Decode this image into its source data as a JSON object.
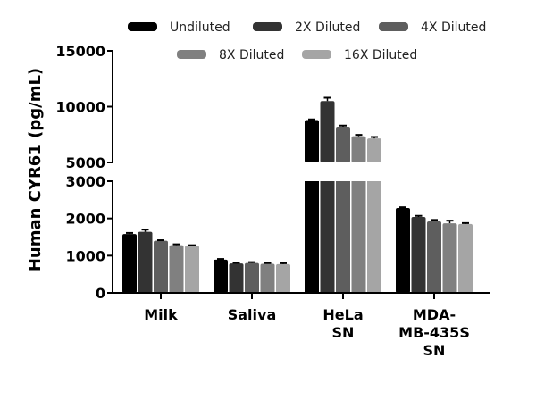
{
  "chart_data": {
    "type": "bar",
    "title": "",
    "xlabel": "",
    "ylabel": "Human CYR61 (pg/mL)",
    "categories": [
      "Milk",
      "Saliva",
      "HeLa SN",
      "MDA-MB-435S SN"
    ],
    "category_label_lines": [
      [
        "Milk"
      ],
      [
        "Saliva"
      ],
      [
        "HeLa",
        "SN"
      ],
      [
        "MDA-",
        "MB-435S",
        "SN"
      ]
    ],
    "series": [
      {
        "name": "Undiluted",
        "color": "#000000",
        "values": [
          1580,
          890,
          8800,
          2280
        ],
        "errors": [
          30,
          20,
          60,
          20
        ]
      },
      {
        "name": "2X Diluted",
        "color": "#333333",
        "values": [
          1640,
          790,
          10500,
          2040
        ],
        "errors": [
          60,
          15,
          300,
          30
        ]
      },
      {
        "name": "4X Diluted",
        "color": "#5e5e5e",
        "values": [
          1400,
          800,
          8200,
          1920
        ],
        "errors": [
          15,
          25,
          100,
          40
        ]
      },
      {
        "name": "8X Diluted",
        "color": "#808080",
        "values": [
          1280,
          780,
          7350,
          1870
        ],
        "errors": [
          25,
          20,
          120,
          70
        ]
      },
      {
        "name": "16X Diluted",
        "color": "#a5a5a5",
        "values": [
          1270,
          770,
          7150,
          1850
        ],
        "errors": [
          10,
          25,
          130,
          25
        ]
      }
    ],
    "axis_break": {
      "lower_range": [
        0,
        3000
      ],
      "upper_range": [
        5000,
        15000
      ]
    },
    "yticks_lower": [
      0,
      1000,
      2000,
      3000
    ],
    "yticks_upper": [
      5000,
      10000,
      15000
    ],
    "ytick_labels_lower": [
      "0",
      "1000",
      "2000",
      "3000"
    ],
    "ytick_labels_upper": [
      "5000",
      "10000",
      "15000"
    ],
    "legend_position": "top",
    "grid": false
  }
}
